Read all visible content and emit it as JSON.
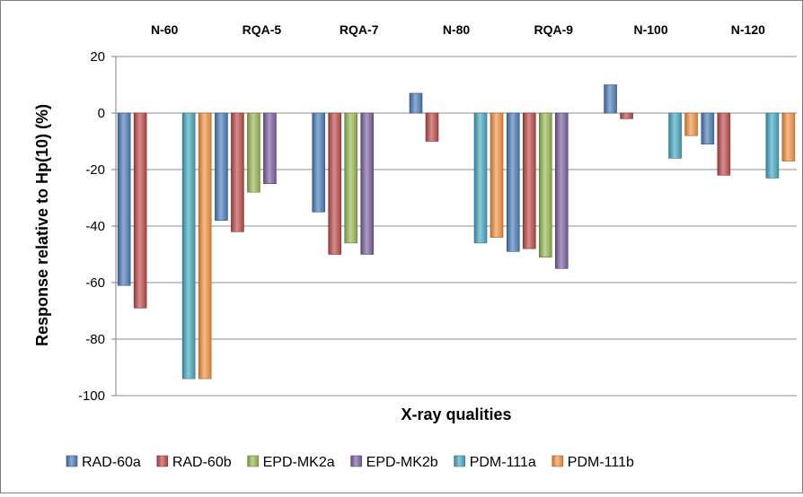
{
  "chart_data": {
    "type": "bar",
    "title": "",
    "xlabel": "X-ray qualities",
    "ylabel": "Response relative to Hp(10) (%)",
    "ylim": [
      -100,
      20
    ],
    "yticks": [
      20,
      0,
      -20,
      -40,
      -60,
      -80,
      -100
    ],
    "grid": true,
    "legend_position": "bottom",
    "categories": [
      "N-60",
      "RQA-5",
      "RQA-7",
      "N-80",
      "RQA-9",
      "N-100",
      "N-120"
    ],
    "series": [
      {
        "name": "RAD-60a",
        "color": "#4f81bd",
        "values": [
          -61,
          -38,
          -35,
          7,
          -49,
          10,
          -11
        ]
      },
      {
        "name": "RAD-60b",
        "color": "#c0504d",
        "values": [
          -69,
          -42,
          -50,
          -10,
          -48,
          -2,
          -22
        ]
      },
      {
        "name": "EPD-MK2a",
        "color": "#9bbb59",
        "values": [
          null,
          -28,
          -46,
          null,
          -51,
          null,
          null
        ]
      },
      {
        "name": "EPD-MK2b",
        "color": "#8064a2",
        "values": [
          null,
          -25,
          -50,
          null,
          -55,
          null,
          null
        ]
      },
      {
        "name": "PDM-111a",
        "color": "#4bacc6",
        "values": [
          -94,
          null,
          null,
          -46,
          null,
          -16,
          -23
        ]
      },
      {
        "name": "PDM-111b",
        "color": "#f79646",
        "values": [
          -94,
          null,
          null,
          -44,
          null,
          -8,
          -17
        ]
      }
    ]
  }
}
